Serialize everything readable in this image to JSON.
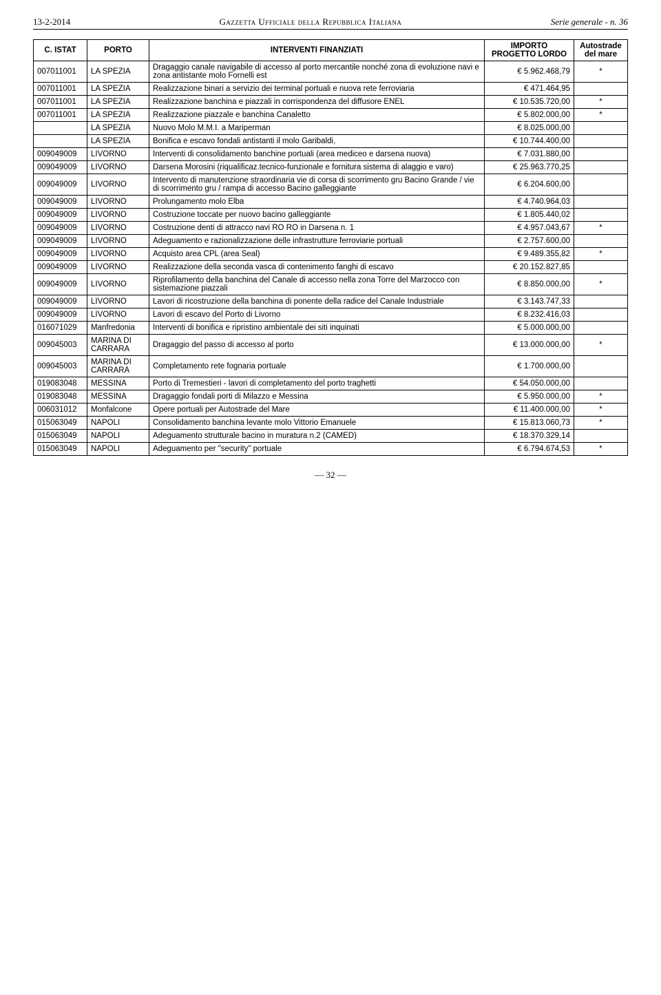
{
  "header": {
    "date": "13-2-2014",
    "center": "Gazzetta Ufficiale della Repubblica Italiana",
    "right": "Serie generale - n. 36"
  },
  "table": {
    "columns": {
      "istat": "C. ISTAT",
      "porto": "PORTO",
      "interventi": "INTERVENTI FINANZIATI",
      "importo": "IMPORTO PROGETTO LORDO",
      "autostrade": "Autostrade del mare"
    },
    "rows": [
      {
        "istat": "007011001",
        "porto": "LA SPEZIA",
        "interv": "Dragaggio canale navigabile di accesso al porto mercantile nonché zona di evoluzione navi e zona antistante molo Fornelli est",
        "importo": "€        5.962.468,79",
        "auto": "*"
      },
      {
        "istat": "007011001",
        "porto": "LA SPEZIA",
        "interv": "Realizzazione binari a servizio dei terminal portuali e nuova rete ferroviaria",
        "importo": "€           471.464,95",
        "auto": ""
      },
      {
        "istat": "007011001",
        "porto": "LA SPEZIA",
        "interv": "Realizzazione banchina e piazzali in corrispondenza del diffusore ENEL",
        "importo": "€      10.535.720,00",
        "auto": "*"
      },
      {
        "istat": "007011001",
        "porto": "LA SPEZIA",
        "interv": "Realizzazione piazzale e banchina Canaletto",
        "importo": "€ 5.802.000,00",
        "auto": "*"
      },
      {
        "istat": "",
        "porto": "LA SPEZIA",
        "interv": "Nuovo Molo M.M.I. a Mariperman",
        "importo": "€ 8.025.000,00",
        "auto": ""
      },
      {
        "istat": "",
        "porto": "LA SPEZIA",
        "interv": "Bonifica e escavo fondali antistanti il molo Garibaldi,",
        "importo": "€ 10.744.400,00",
        "auto": ""
      },
      {
        "istat": "009049009",
        "porto": "LIVORNO",
        "interv": "Interventi di consolidamento banchine portuali (area mediceo e darsena nuova)",
        "importo": "€ 7.031.880,00",
        "auto": ""
      },
      {
        "istat": "009049009",
        "porto": "LIVORNO",
        "interv": "Darsena Morosini (riqualificaz.tecnico-funzionale e fornitura sistema di alaggio e varo)",
        "importo": "€ 25.963.770,25",
        "auto": ""
      },
      {
        "istat": "009049009",
        "porto": "LIVORNO",
        "interv": "Intervento di manutenzione straordinaria vie di corsa di scorrimento gru Bacino Grande / vie di scorrimento gru / rampa di accesso Bacino galleggiante",
        "importo": "€ 6.204.600,00",
        "auto": ""
      },
      {
        "istat": "009049009",
        "porto": "LIVORNO",
        "interv": "Prolungamento molo Elba",
        "importo": "€ 4.740.964,03",
        "auto": ""
      },
      {
        "istat": "009049009",
        "porto": "LIVORNO",
        "interv": "Costruzione toccate per nuovo bacino galleggiante",
        "importo": "€ 1.805.440,02",
        "auto": ""
      },
      {
        "istat": "009049009",
        "porto": "LIVORNO",
        "interv": "Costruzione denti di attracco navi RO RO in Darsena n. 1",
        "importo": "€ 4.957.043,67",
        "auto": "*"
      },
      {
        "istat": "009049009",
        "porto": "LIVORNO",
        "interv": "Adeguamento e razionalizzazione delle infrastrutture ferroviarie portuali",
        "importo": "€ 2.757.600,00",
        "auto": ""
      },
      {
        "istat": "009049009",
        "porto": "LIVORNO",
        "interv": "Acquisto area CPL  (area Seal)",
        "importo": "€ 9.489.355,82",
        "auto": "*"
      },
      {
        "istat": "009049009",
        "porto": "LIVORNO",
        "interv": "Realizzazione della seconda vasca di contenimento fanghi di escavo",
        "importo": "€ 20.152.827,85",
        "auto": ""
      },
      {
        "istat": "009049009",
        "porto": "LIVORNO",
        "interv": "Riprofilamento della banchina del Canale di accesso nella zona Torre del Marzocco con sistemazione piazzali",
        "importo": "€ 8.850.000,00",
        "auto": "*"
      },
      {
        "istat": "009049009",
        "porto": "LIVORNO",
        "interv": "Lavori di ricostruzione della banchina di ponente della radice del Canale Industriale",
        "importo": "€ 3.143.747,33",
        "auto": ""
      },
      {
        "istat": "009049009",
        "porto": "LIVORNO",
        "interv": "Lavori di escavo del Porto di Livorno",
        "importo": "€ 8.232.416,03",
        "auto": ""
      },
      {
        "istat": "016071029",
        "porto": "Manfredonia",
        "interv": "Interventi di bonifica e ripristino ambientale dei siti inquinati",
        "importo": "€        5.000.000,00",
        "auto": ""
      },
      {
        "istat": "009045003",
        "porto": "MARINA DI CARRARA",
        "interv": "Dragaggio del passo di accesso al porto",
        "importo": "€      13.000.000,00",
        "auto": "*"
      },
      {
        "istat": "009045003",
        "porto": "MARINA DI CARRARA",
        "interv": "Completamento rete fognaria portuale",
        "importo": "€        1.700.000,00",
        "auto": ""
      },
      {
        "istat": "019083048",
        "porto": "MESSINA",
        "interv": "Porto di Tremestieri - lavori di completamento del porto traghetti",
        "importo": "€      54.050.000,00",
        "auto": ""
      },
      {
        "istat": "019083048",
        "porto": "MESSINA",
        "interv": "Dragaggio fondali porti di Milazzo e Messina",
        "importo": "€        5.950.000,00",
        "auto": "*"
      },
      {
        "istat": "006031012",
        "porto": "Monfalcone",
        "interv": "Opere portuali per Autostrade del Mare",
        "importo": "€      11.400.000,00",
        "auto": "*"
      },
      {
        "istat": "015063049",
        "porto": "NAPOLI",
        "interv": "Consolidamento banchina levante molo Vittorio Emanuele",
        "importo": "€      15.813.060,73",
        "auto": "*"
      },
      {
        "istat": "015063049",
        "porto": "NAPOLI",
        "interv": "Adeguamento strutturale bacino in muratura n.2 (CAMED)",
        "importo": "€      18.370.329,14",
        "auto": ""
      },
      {
        "istat": "015063049",
        "porto": "NAPOLI",
        "interv": "Adeguamento per \"security\" portuale",
        "importo": "€        6.794.674,53",
        "auto": "*"
      }
    ]
  },
  "page_number": "— 32 —"
}
